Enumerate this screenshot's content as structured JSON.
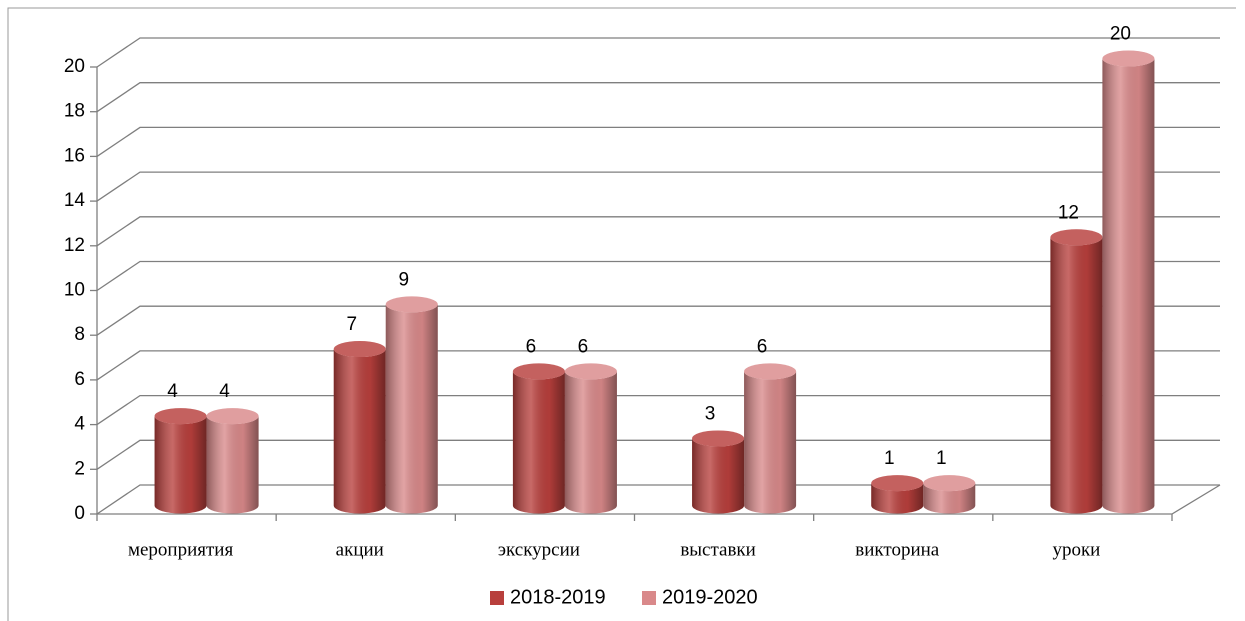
{
  "chart_data": {
    "type": "bar3d",
    "categories": [
      "мероприятия",
      "акции",
      "экскурсии",
      "выставки",
      "викторина",
      "уроки"
    ],
    "series": [
      {
        "name": "2018-2019",
        "color": "#b83f3c",
        "values": [
          4,
          7,
          6,
          3,
          1,
          12
        ]
      },
      {
        "name": "2019-2020",
        "color": "#d9898a",
        "values": [
          4,
          9,
          6,
          6,
          1,
          20
        ]
      }
    ],
    "ylim": [
      0,
      20
    ],
    "yticks": [
      0,
      2,
      4,
      6,
      8,
      10,
      12,
      14,
      16,
      18,
      20
    ],
    "grid": true,
    "legend": "bottom"
  }
}
